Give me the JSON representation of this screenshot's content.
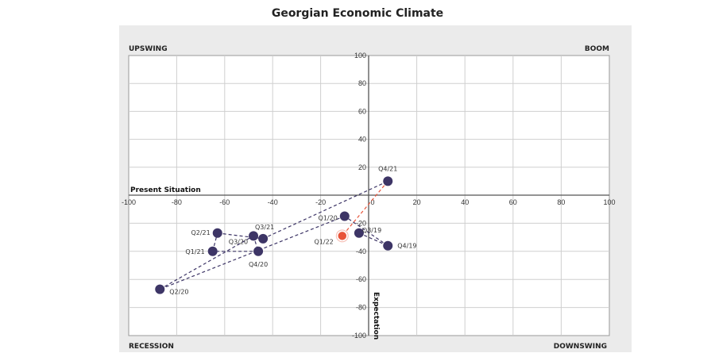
{
  "chart_data": {
    "type": "scatter",
    "title": "Georgian Economic Climate",
    "xlabel": "Present Situation",
    "ylabel": "Expectation",
    "xlim": [
      -100,
      100
    ],
    "ylim": [
      -100,
      100
    ],
    "grid": true,
    "x_ticks": [
      "-100",
      "-80",
      "-60",
      "-40",
      "-20",
      "0",
      "20",
      "40",
      "60",
      "80",
      "100"
    ],
    "y_ticks": [
      "100",
      "80",
      "60",
      "40",
      "20",
      "-20",
      "-40",
      "-60",
      "-80",
      "-100"
    ],
    "quadrants": {
      "top_left": "UPSWING",
      "top_right": "BOOM",
      "bottom_left": "RECESSION",
      "bottom_right": "DOWNSWING"
    },
    "colors": {
      "series": "#3d3566",
      "highlight": "#e8543a"
    },
    "points": [
      {
        "label": "Q3/19",
        "x": -4,
        "y": -27
      },
      {
        "label": "Q4/19",
        "x": 8,
        "y": -36
      },
      {
        "label": "Q1/20",
        "x": -10,
        "y": -15
      },
      {
        "label": "Q2/20",
        "x": -87,
        "y": -67
      },
      {
        "label": "Q3/20",
        "x": -48,
        "y": -29
      },
      {
        "label": "Q4/20",
        "x": -46,
        "y": -40
      },
      {
        "label": "Q1/21",
        "x": -65,
        "y": -40
      },
      {
        "label": "Q2/21",
        "x": -63,
        "y": -27
      },
      {
        "label": "Q3/21",
        "x": -44,
        "y": -31
      },
      {
        "label": "Q4/21",
        "x": 8,
        "y": 10
      },
      {
        "label": "Q1/22",
        "x": -11,
        "y": -29,
        "highlight": true
      }
    ]
  }
}
